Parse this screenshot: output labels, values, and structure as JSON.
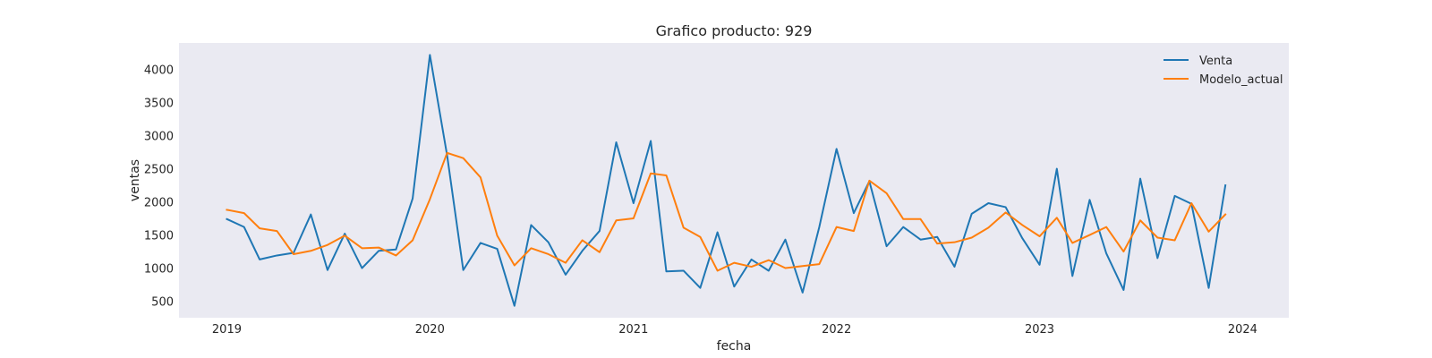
{
  "chart_data": {
    "type": "line",
    "title": "Grafico producto: 929",
    "xlabel": "fecha",
    "ylabel": "ventas",
    "x_start": "2019-01",
    "x_frequency": "monthly",
    "xticks": [
      "2019",
      "2020",
      "2021",
      "2022",
      "2023",
      "2024"
    ],
    "yticks": [
      500,
      1000,
      1500,
      2000,
      2500,
      3000,
      3500,
      4000
    ],
    "xlim": [
      "2018-10-07",
      "2024-03-24"
    ],
    "ylim": [
      250,
      4400
    ],
    "grid": false,
    "background": "#eaeaf2",
    "legend_position": "top-right",
    "series": [
      {
        "name": "Venta",
        "color": "#1f77b4",
        "values": [
          1740,
          1620,
          1130,
          1190,
          1230,
          1810,
          970,
          1520,
          1000,
          1260,
          1280,
          2050,
          4220,
          2700,
          970,
          1380,
          1290,
          430,
          1650,
          1390,
          900,
          1260,
          1560,
          2900,
          1980,
          2920,
          950,
          960,
          700,
          1540,
          720,
          1130,
          960,
          1430,
          630,
          1620,
          2800,
          1830,
          2310,
          1330,
          1620,
          1430,
          1470,
          1020,
          1820,
          1980,
          1920,
          1450,
          1050,
          2500,
          880,
          2030,
          1220,
          670,
          2350,
          1150,
          2090,
          1970,
          700,
          2250
        ]
      },
      {
        "name": "Modelo_actual",
        "color": "#ff7f0e",
        "values": [
          1880,
          1830,
          1600,
          1560,
          1210,
          1260,
          1350,
          1490,
          1300,
          1310,
          1190,
          1420,
          2040,
          2740,
          2660,
          2370,
          1490,
          1040,
          1300,
          1210,
          1080,
          1420,
          1240,
          1720,
          1750,
          2430,
          2400,
          1610,
          1470,
          960,
          1080,
          1020,
          1120,
          1000,
          1030,
          1060,
          1620,
          1560,
          2320,
          2130,
          1740,
          1740,
          1370,
          1390,
          1460,
          1610,
          1840,
          1650,
          1480,
          1760,
          1380,
          1500,
          1620,
          1250,
          1720,
          1460,
          1420,
          1980,
          1550,
          1810
        ]
      }
    ]
  }
}
